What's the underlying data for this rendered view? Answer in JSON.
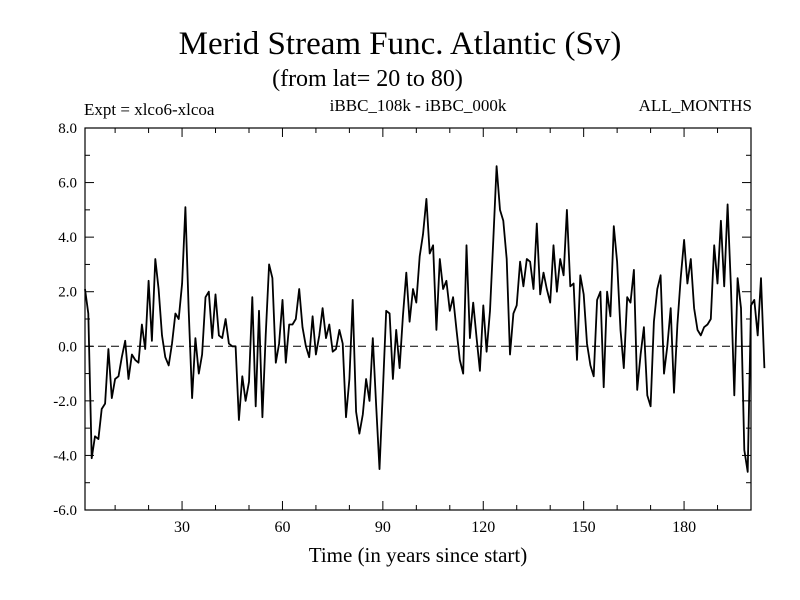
{
  "chart_data": {
    "type": "line",
    "title": "Merid Stream Func. Atlantic (Sv)",
    "subtitle": "(from lat= 20 to 80)",
    "left_note": "Expt = xlco6-xlcoa",
    "center_note": "iBBC_108k - iBBC_000k",
    "right_note": "ALL_MONTHS",
    "xlabel": "Time (in years since start)",
    "ylabel": "",
    "xlim": [
      1,
      200
    ],
    "ylim": [
      -6.0,
      8.0
    ],
    "xticks": [
      30,
      60,
      90,
      120,
      150,
      180
    ],
    "xtick_labels": [
      "30",
      "60",
      "90",
      "120",
      "150",
      "180"
    ],
    "yticks": [
      -6,
      -4,
      -2,
      0,
      2,
      4,
      6,
      8
    ],
    "ytick_labels": [
      "-6.0",
      "-4.0",
      "-2.0",
      "0.0",
      "2.0",
      "4.0",
      "6.0",
      "8.0"
    ],
    "reference_line": {
      "y": 0,
      "style": "dashed"
    },
    "series": [
      {
        "name": "xlco6-xlcoa",
        "color": "#000000",
        "x_start": 1,
        "x_step": 1,
        "values": [
          2.1,
          1.2,
          -4.1,
          -3.3,
          -3.4,
          -2.3,
          -2.1,
          -0.1,
          -1.9,
          -1.2,
          -1.1,
          -0.4,
          0.2,
          -1.2,
          -0.3,
          -0.5,
          -0.6,
          0.8,
          -0.1,
          2.4,
          0.2,
          3.2,
          2.1,
          0.4,
          -0.4,
          -0.7,
          0.1,
          1.2,
          1.0,
          2.3,
          5.1,
          1.3,
          -1.9,
          0.3,
          -1.0,
          -0.3,
          1.8,
          2.0,
          0.3,
          1.9,
          0.4,
          0.3,
          1.0,
          0.1,
          0.0,
          0.0,
          -2.7,
          -1.1,
          -2.0,
          -1.3,
          1.8,
          -2.2,
          1.3,
          -2.6,
          0.4,
          3.0,
          2.5,
          -0.6,
          0.1,
          1.7,
          -0.6,
          0.8,
          0.8,
          1.0,
          2.1,
          0.7,
          0.0,
          -0.4,
          1.1,
          -0.3,
          0.4,
          1.4,
          0.3,
          0.8,
          -0.2,
          -0.1,
          0.6,
          0.1,
          -2.6,
          -1.2,
          1.7,
          -2.4,
          -3.2,
          -2.5,
          -1.2,
          -2.0,
          0.3,
          -2.2,
          -4.5,
          -1.6,
          1.3,
          1.2,
          -1.2,
          0.6,
          -0.8,
          1.1,
          2.7,
          0.9,
          2.1,
          1.6,
          3.3,
          4.1,
          5.4,
          3.4,
          3.7,
          0.6,
          3.2,
          2.1,
          2.4,
          1.3,
          1.8,
          0.6,
          -0.5,
          -1.0,
          3.7,
          0.3,
          1.6,
          0.3,
          -0.9,
          1.5,
          -0.2,
          1.3,
          3.9,
          6.6,
          5.0,
          4.6,
          3.2,
          -0.3,
          1.2,
          1.5,
          3.1,
          2.2,
          3.2,
          3.1,
          2.1,
          4.5,
          1.9,
          2.7,
          2.1,
          1.6,
          3.7,
          2.0,
          3.2,
          2.6,
          5.0,
          2.2,
          2.3,
          -0.5,
          2.6,
          1.9,
          0.1,
          -0.7,
          -1.1,
          1.7,
          2.0,
          -1.5,
          2.0,
          1.1,
          4.4,
          3.1,
          0.6,
          -0.8,
          1.8,
          1.6,
          2.8,
          -1.6,
          -0.3,
          0.7,
          -1.8,
          -2.2,
          0.9,
          2.1,
          2.6,
          -1.0,
          0.0,
          1.4,
          -1.7,
          0.8,
          2.5,
          3.9,
          2.3,
          3.2,
          1.4,
          0.6,
          0.4,
          0.7,
          0.8,
          1.0,
          3.7,
          2.3,
          4.6,
          2.2,
          5.2,
          2.2,
          -1.8,
          2.5,
          1.4,
          -3.8,
          -4.6,
          1.5,
          1.7,
          0.4,
          2.5,
          -0.8
        ]
      }
    ]
  }
}
